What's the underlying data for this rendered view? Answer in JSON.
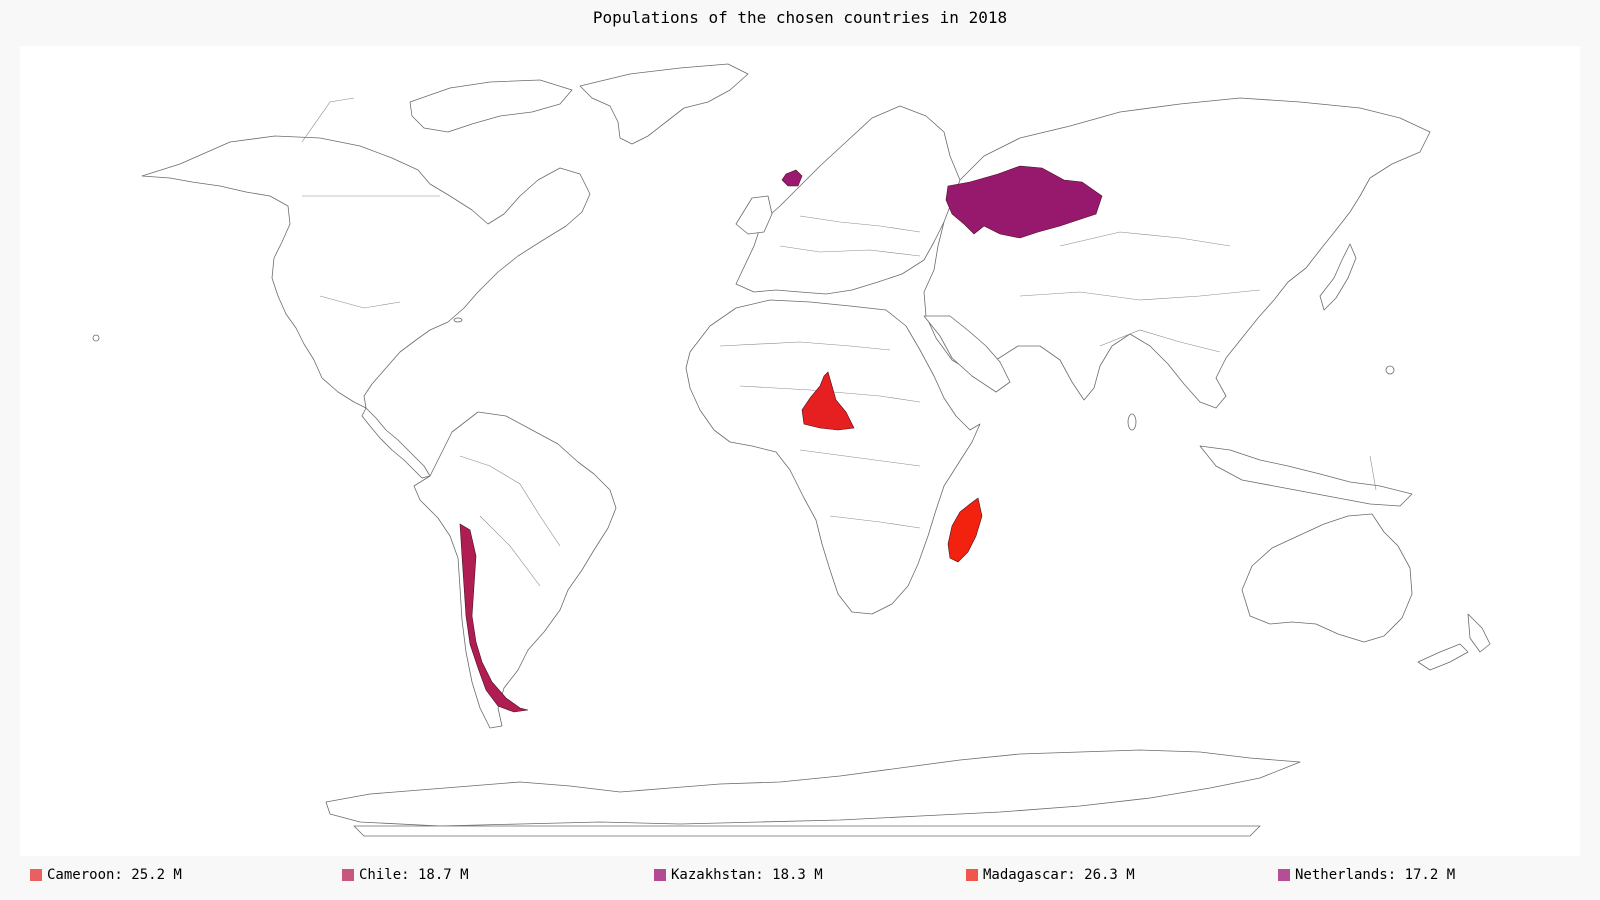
{
  "title": "Populations of the chosen countries in 2018",
  "highlighted": [
    {
      "name": "Cameroon",
      "value_millions": 25.2,
      "color": "#e62020",
      "swatch": "#e8615f"
    },
    {
      "name": "Chile",
      "value_millions": 18.7,
      "color": "#b01d52",
      "swatch": "#c8577f"
    },
    {
      "name": "Kazakhstan",
      "value_millions": 18.3,
      "color": "#97196e",
      "swatch": "#b34a92"
    },
    {
      "name": "Madagascar",
      "value_millions": 26.3,
      "color": "#f2220e",
      "swatch": "#f0574a"
    },
    {
      "name": "Netherlands",
      "value_millions": 17.2,
      "color": "#9b1a70",
      "swatch": "#b54e97"
    }
  ],
  "legend": [
    {
      "label": "Cameroon: 25.2 M"
    },
    {
      "label": "Chile: 18.7 M"
    },
    {
      "label": "Kazakhstan: 18.3 M"
    },
    {
      "label": "Madagascar: 26.3 M"
    },
    {
      "label": "Netherlands: 17.2 M"
    }
  ]
}
